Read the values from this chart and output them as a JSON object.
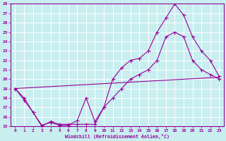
{
  "xlabel": "Windchill (Refroidissement éolien,°C)",
  "xlim": [
    -0.5,
    23.5
  ],
  "ylim": [
    15,
    28
  ],
  "xticks": [
    0,
    1,
    2,
    3,
    4,
    5,
    6,
    7,
    8,
    9,
    10,
    11,
    12,
    13,
    14,
    15,
    16,
    17,
    18,
    19,
    20,
    21,
    22,
    23
  ],
  "yticks": [
    15,
    16,
    17,
    18,
    19,
    20,
    21,
    22,
    23,
    24,
    25,
    26,
    27,
    28
  ],
  "bg_color": "#c8eef0",
  "line_color": "#990099",
  "grid_color": "#ffffff",
  "line1_x": [
    0,
    1,
    2,
    3,
    4,
    5,
    6,
    7,
    8,
    9,
    10,
    11,
    12,
    13,
    14,
    15,
    16,
    17,
    18,
    19,
    20,
    21,
    22,
    23
  ],
  "line1_y": [
    19,
    18,
    16.5,
    15,
    15.5,
    15.2,
    15.2,
    15.2,
    15.2,
    15.2,
    17,
    18,
    19,
    20,
    20.5,
    21,
    22,
    24.5,
    25,
    24.5,
    22,
    21,
    20.5,
    20
  ],
  "line2_x": [
    0,
    1,
    2,
    3,
    4,
    5,
    6,
    7,
    8,
    9,
    10,
    11,
    12,
    13,
    14,
    15,
    16,
    17,
    18,
    19,
    20,
    21,
    22,
    23
  ],
  "line2_y": [
    19,
    17.8,
    16.5,
    15.1,
    15.4,
    15.1,
    15.1,
    15.6,
    18,
    15.5,
    17,
    20,
    21.2,
    22,
    22.2,
    23,
    25,
    26.5,
    28,
    26.8,
    24.5,
    23,
    22,
    20.3
  ],
  "line3_x": [
    0,
    23
  ],
  "line3_y": [
    19,
    20.2
  ]
}
